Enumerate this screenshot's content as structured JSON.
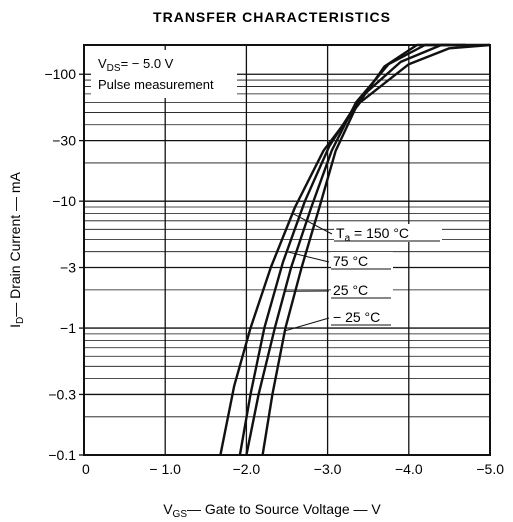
{
  "chart_data": {
    "type": "line",
    "title": "TRANSFER CHARACTERISTICS",
    "xlabel": {
      "main": "V",
      "sub": "GS",
      "rest": "— Gate to Source Voltage — V"
    },
    "ylabel": {
      "main": "I",
      "sub": "D",
      "rest": "— Drain Current — mA"
    },
    "xlim": [
      0,
      -5.0
    ],
    "ylim": [
      0.1,
      200
    ],
    "y_scale": "log",
    "grid": true,
    "x_ticks": [
      {
        "value": 0,
        "label": "0"
      },
      {
        "value": -1.0,
        "label": "− 1.0"
      },
      {
        "value": -2.0,
        "label": "−2.0"
      },
      {
        "value": -3.0,
        "label": "−3.0"
      },
      {
        "value": -4.0,
        "label": "−4.0"
      },
      {
        "value": -5.0,
        "label": "−5.0"
      }
    ],
    "y_ticks": [
      {
        "value": 100,
        "label": "−100"
      },
      {
        "value": 30,
        "label": "−30"
      },
      {
        "value": 10,
        "label": "−10"
      },
      {
        "value": 3,
        "label": "−3"
      },
      {
        "value": 1,
        "label": "−1"
      },
      {
        "value": 0.3,
        "label": "−0.3"
      },
      {
        "value": 0.1,
        "label": "−0.1"
      }
    ],
    "conditions": {
      "vds": {
        "main": "V",
        "sub": "DS",
        "rest": "= − 5.0 V"
      },
      "note": "Pulse measurement"
    },
    "series": [
      {
        "name": "Tₐ = 150 °C",
        "label_main": "T",
        "label_sub": "a",
        "label_rest": "= 150 °C",
        "x": [
          -1.68,
          -1.85,
          -2.05,
          -2.3,
          -2.6,
          -2.95,
          -3.4,
          -4.0,
          -4.5,
          -5.0
        ],
        "y": [
          0.1,
          0.35,
          1.0,
          3.0,
          9.0,
          25.0,
          60.0,
          120.0,
          160.0,
          175.0
        ]
      },
      {
        "name": "75 °C",
        "label_main": "",
        "label_sub": "",
        "label_rest": "75 °C",
        "x": [
          -1.92,
          -2.05,
          -2.22,
          -2.45,
          -2.72,
          -3.02,
          -3.4,
          -3.9,
          -4.4,
          -5.0
        ],
        "y": [
          0.1,
          0.3,
          1.0,
          3.3,
          10.0,
          27.0,
          65.0,
          125.0,
          170.0,
          200.0
        ]
      },
      {
        "name": "25 °C",
        "label_main": "",
        "label_sub": "",
        "label_rest": "25 °C",
        "x": [
          -2.0,
          -2.15,
          -2.35,
          -2.55,
          -2.8,
          -3.05,
          -3.35,
          -3.75,
          -4.2,
          -4.7
        ],
        "y": [
          0.1,
          0.3,
          1.0,
          3.0,
          9.0,
          25.0,
          60.0,
          120.0,
          170.0,
          200.0
        ]
      },
      {
        "name": "−25 °C",
        "label_main": "",
        "label_sub": "",
        "label_rest": "− 25 °C",
        "x": [
          -2.2,
          -2.32,
          -2.48,
          -2.68,
          -2.9,
          -3.1,
          -3.35,
          -3.7,
          -4.1,
          -4.5
        ],
        "y": [
          0.1,
          0.3,
          1.0,
          3.0,
          9.0,
          25.0,
          55.0,
          115.0,
          170.0,
          200.0
        ]
      }
    ]
  }
}
